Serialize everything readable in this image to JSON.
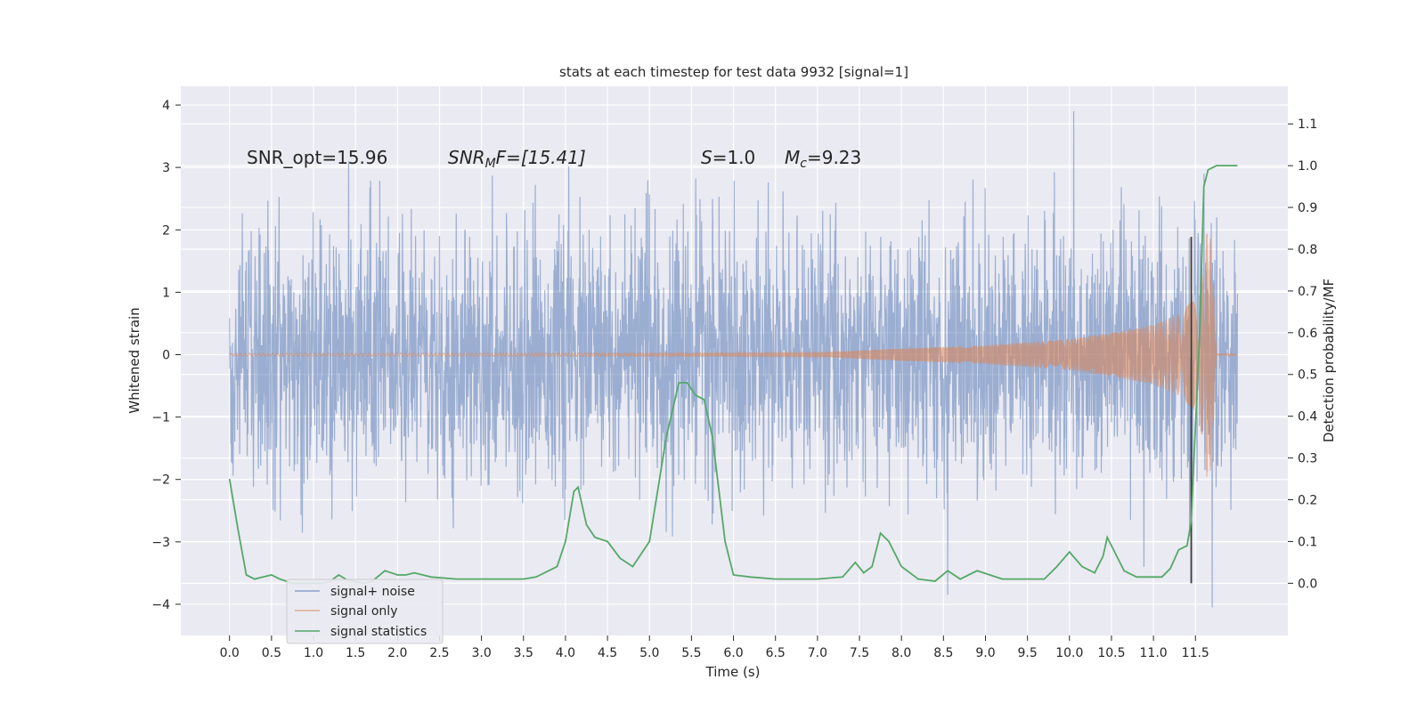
{
  "chart_data": {
    "type": "line",
    "title": "stats at each timestep for test data 9932 [signal=1]",
    "xlabel": "Time (s)",
    "ylabel": "Whitened strain",
    "y2label": "Detection probability/MF",
    "xlim": [
      -0.58,
      12.6
    ],
    "ylim": [
      -4.5,
      4.3
    ],
    "y2lim": [
      -0.125,
      1.19
    ],
    "x_ticks": [
      "0.0",
      "0.5",
      "1.0",
      "1.5",
      "2.0",
      "2.5",
      "3.0",
      "3.5",
      "4.0",
      "4.5",
      "5.0",
      "5.5",
      "6.0",
      "6.5",
      "7.0",
      "7.5",
      "8.0",
      "8.5",
      "9.0",
      "9.5",
      "10.0",
      "10.5",
      "11.0",
      "11.5"
    ],
    "y_ticks": [
      "4",
      "3",
      "2",
      "1",
      "0",
      "−1",
      "−2",
      "−3",
      "−4"
    ],
    "y2_ticks": [
      "1.1",
      "1.0",
      "0.9",
      "0.8",
      "0.7",
      "0.6",
      "0.5",
      "0.4",
      "0.3",
      "0.2",
      "0.1",
      "0.0"
    ],
    "grid": true,
    "legend_position": "lower-left",
    "annotations": {
      "snr_opt": "SNR_opt=15.96",
      "snr_mf_name": "SNR",
      "snr_mf_sub": "M",
      "snr_mf_rest": "F=[15.41]",
      "s_name": "S",
      "s_rest": "=1.0",
      "mc_name": "M",
      "mc_sub": "c",
      "mc_rest": "=9.23"
    },
    "vline_x": 11.45,
    "series": [
      {
        "name": "signal+ noise",
        "color": "#4c72b0",
        "kind": "noise",
        "x_range": [
          0.0,
          12.0
        ],
        "sample_rate_hz": 256,
        "envelope_std": 1.0,
        "notable_peaks": [
          [
            10.05,
            3.9
          ],
          [
            11.7,
            -4.05
          ],
          [
            8.55,
            -3.85
          ],
          [
            11.6,
            2.9
          ]
        ]
      },
      {
        "name": "signal only",
        "color": "#dd8452",
        "kind": "chirp",
        "x_range": [
          0.0,
          12.0
        ],
        "amplitude_points": [
          [
            0.0,
            0.02
          ],
          [
            7.0,
            0.03
          ],
          [
            8.0,
            0.1
          ],
          [
            9.0,
            0.15
          ],
          [
            10.0,
            0.25
          ],
          [
            10.5,
            0.35
          ],
          [
            11.0,
            0.48
          ],
          [
            11.3,
            0.65
          ],
          [
            11.5,
            0.9
          ],
          [
            11.6,
            1.4
          ],
          [
            11.65,
            2.2
          ],
          [
            11.7,
            1.6
          ],
          [
            11.75,
            0.02
          ],
          [
            12.0,
            0.0
          ]
        ]
      },
      {
        "name": "signal statistics",
        "color": "#55a868",
        "kind": "line",
        "axis": "right",
        "points": [
          [
            0.0,
            0.25
          ],
          [
            0.1,
            0.13
          ],
          [
            0.2,
            0.02
          ],
          [
            0.3,
            0.01
          ],
          [
            0.4,
            0.015
          ],
          [
            0.5,
            0.02
          ],
          [
            0.6,
            0.01
          ],
          [
            0.75,
            0.0
          ],
          [
            1.0,
            0.0
          ],
          [
            1.1,
            0.0
          ],
          [
            1.2,
            0.005
          ],
          [
            1.3,
            0.02
          ],
          [
            1.4,
            0.008
          ],
          [
            1.6,
            0.0
          ],
          [
            1.7,
            0.005
          ],
          [
            1.85,
            0.03
          ],
          [
            2.0,
            0.02
          ],
          [
            2.1,
            0.02
          ],
          [
            2.2,
            0.025
          ],
          [
            2.4,
            0.015
          ],
          [
            2.7,
            0.01
          ],
          [
            3.0,
            0.01
          ],
          [
            3.2,
            0.01
          ],
          [
            3.5,
            0.01
          ],
          [
            3.65,
            0.015
          ],
          [
            3.9,
            0.04
          ],
          [
            4.0,
            0.1
          ],
          [
            4.1,
            0.22
          ],
          [
            4.15,
            0.23
          ],
          [
            4.25,
            0.14
          ],
          [
            4.35,
            0.11
          ],
          [
            4.5,
            0.1
          ],
          [
            4.65,
            0.06
          ],
          [
            4.8,
            0.04
          ],
          [
            5.0,
            0.1
          ],
          [
            5.2,
            0.35
          ],
          [
            5.35,
            0.48
          ],
          [
            5.45,
            0.48
          ],
          [
            5.55,
            0.45
          ],
          [
            5.65,
            0.44
          ],
          [
            5.75,
            0.35
          ],
          [
            5.9,
            0.1
          ],
          [
            6.0,
            0.02
          ],
          [
            6.2,
            0.015
          ],
          [
            6.5,
            0.01
          ],
          [
            6.8,
            0.01
          ],
          [
            7.0,
            0.01
          ],
          [
            7.3,
            0.015
          ],
          [
            7.45,
            0.05
          ],
          [
            7.55,
            0.025
          ],
          [
            7.65,
            0.04
          ],
          [
            7.75,
            0.12
          ],
          [
            7.85,
            0.1
          ],
          [
            8.0,
            0.04
          ],
          [
            8.2,
            0.01
          ],
          [
            8.4,
            0.005
          ],
          [
            8.55,
            0.03
          ],
          [
            8.7,
            0.01
          ],
          [
            8.9,
            0.03
          ],
          [
            9.2,
            0.01
          ],
          [
            9.5,
            0.01
          ],
          [
            9.7,
            0.01
          ],
          [
            9.85,
            0.04
          ],
          [
            10.0,
            0.075
          ],
          [
            10.15,
            0.04
          ],
          [
            10.3,
            0.025
          ],
          [
            10.4,
            0.065
          ],
          [
            10.45,
            0.11
          ],
          [
            10.55,
            0.07
          ],
          [
            10.65,
            0.03
          ],
          [
            10.8,
            0.015
          ],
          [
            11.1,
            0.015
          ],
          [
            11.2,
            0.035
          ],
          [
            11.3,
            0.08
          ],
          [
            11.4,
            0.09
          ],
          [
            11.45,
            0.15
          ],
          [
            11.55,
            0.6
          ],
          [
            11.6,
            0.95
          ],
          [
            11.65,
            0.99
          ],
          [
            11.75,
            1.0
          ],
          [
            12.0,
            1.0
          ]
        ]
      }
    ]
  }
}
